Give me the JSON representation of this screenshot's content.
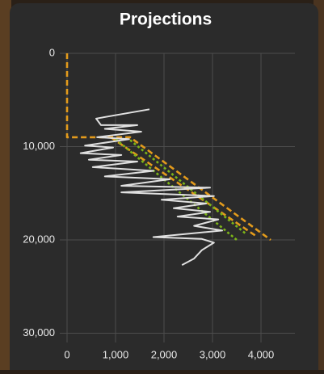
{
  "chart_data": {
    "type": "line",
    "title": "Projections",
    "xlim": [
      -150,
      4700
    ],
    "xticks": [
      0,
      {
        "value": 1000,
        "label": "1,000"
      },
      {
        "value": 2000,
        "label": "2,000"
      },
      {
        "value": 3000,
        "label": "3,000"
      },
      {
        "value": 4000,
        "label": "4,000"
      }
    ],
    "ylim": [
      0,
      31000
    ],
    "y_inverted": true,
    "yticks": [
      0,
      {
        "value": 10000,
        "label": "10,000"
      },
      {
        "value": 20000,
        "label": "20,000"
      },
      {
        "value": 30000,
        "label": "30,000"
      }
    ],
    "grid": true,
    "series": [
      {
        "color": "#e39b1c",
        "style": "dashed",
        "x": [
          0,
          0,
          1300,
          4200
        ],
        "values": [
          0,
          9000,
          9000,
          20000
        ]
      },
      {
        "color": "#e39b1c",
        "style": "dashed",
        "x": [
          900,
          3900
        ],
        "values": [
          9000,
          19600
        ]
      },
      {
        "color": "#7cb518",
        "style": "dotted",
        "x": [
          1000,
          3500
        ],
        "values": [
          9200,
          20000
        ]
      },
      {
        "color": "#7cb518",
        "style": "dotted",
        "x": [
          1300,
          3700
        ],
        "values": [
          9300,
          19400
        ]
      },
      {
        "color": "#e0e0e0",
        "style": "solid",
        "x": [
          1700,
          600,
          700,
          1450,
          780,
          1530,
          620,
          1280,
          370,
          950,
          280,
          1120,
          450,
          1450,
          530,
          1780,
          780,
          2120,
          1120,
          2950,
          1120,
          3030,
          1950,
          2870,
          2200,
          2950,
          2280,
          3120,
          2620,
          3200,
          1780,
          2780,
          3030,
          2780,
          2620,
          2370
        ],
        "values": [
          6000,
          7000,
          7700,
          7700,
          8100,
          8400,
          9000,
          9200,
          9900,
          10100,
          10700,
          10900,
          11400,
          11600,
          12200,
          12600,
          13200,
          13500,
          14200,
          14400,
          14900,
          15300,
          15700,
          16100,
          16600,
          17000,
          17500,
          17800,
          18500,
          19000,
          19700,
          19900,
          20300,
          21100,
          22000,
          22700
        ]
      }
    ]
  }
}
